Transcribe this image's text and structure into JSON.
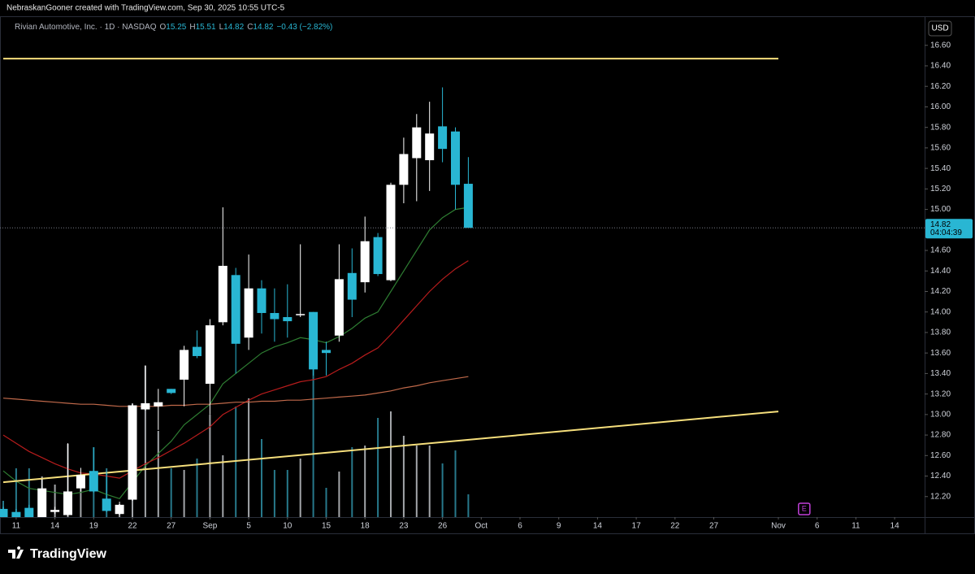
{
  "header": {
    "credit": "NebraskanGooner created with TradingView.com, Sep 30, 2025 10:55 UTC-5"
  },
  "chart_data": {
    "type": "candlestick",
    "symbol": "Rivian Automotive, Inc. · 1D · NASDAQ",
    "ohlc_letters": [
      "O",
      "H",
      "L",
      "C"
    ],
    "change_label": "−0.43 (−2.82%)",
    "currency": "USD",
    "countdown": "04:04:39",
    "categories": [
      null,
      "11",
      null,
      null,
      "14",
      null,
      null,
      "19",
      null,
      null,
      "22",
      null,
      null,
      "27",
      null,
      null,
      "Sep",
      null,
      null,
      "5",
      null,
      null,
      "10",
      null,
      null,
      "15",
      null,
      null,
      "18",
      null,
      null,
      "23",
      null,
      null,
      "26",
      null,
      null,
      "Oct",
      null,
      null,
      "6",
      null,
      null,
      "9",
      null,
      null,
      "14",
      null,
      null,
      "17",
      null,
      null,
      "22",
      null,
      null,
      "27",
      null,
      null,
      null,
      null,
      "Nov",
      null,
      null,
      "6",
      null,
      null,
      "11",
      null,
      null,
      "14",
      null,
      null
    ],
    "open": [
      12.08,
      12.05,
      12.09,
      12.0,
      12.05,
      12.02,
      12.28,
      12.45,
      12.18,
      12.03,
      12.17,
      13.05,
      13.08,
      13.25,
      13.34,
      13.66,
      13.3,
      13.9,
      14.36,
      13.75,
      14.23,
      13.99,
      13.95,
      13.97,
      14.0,
      13.63,
      13.77,
      14.38,
      14.29,
      14.73,
      14.31,
      15.24,
      15.5,
      15.48,
      15.81,
      15.76,
      15.25,
      null,
      null,
      null,
      null,
      null,
      null,
      null,
      null,
      null,
      null,
      null,
      null,
      null,
      null,
      null,
      null,
      null,
      null,
      null,
      null,
      null,
      null,
      null,
      null,
      null,
      null,
      null,
      null,
      null,
      null,
      null,
      null,
      null,
      null,
      null
    ],
    "high": [
      12.1,
      12.08,
      12.12,
      12.37,
      12.1,
      12.72,
      12.48,
      12.68,
      12.44,
      12.15,
      13.1,
      13.48,
      13.25,
      13.25,
      13.67,
      13.82,
      13.93,
      15.02,
      14.43,
      14.56,
      14.31,
      14.23,
      14.27,
      14.66,
      14.0,
      13.71,
      14.66,
      14.62,
      14.93,
      14.77,
      15.26,
      15.7,
      15.93,
      16.05,
      16.19,
      15.8,
      15.51,
      null,
      null,
      null,
      null,
      null,
      null,
      null,
      null,
      null,
      null,
      null,
      null,
      null,
      null,
      null,
      null,
      null,
      null,
      null,
      null,
      null,
      null,
      null,
      null,
      null,
      null,
      null,
      null,
      null,
      null,
      null,
      null,
      null,
      null,
      null
    ],
    "low": [
      12.0,
      11.96,
      12.0,
      11.99,
      12.03,
      12.01,
      12.25,
      12.24,
      12.05,
      12.02,
      12.16,
      13.04,
      12.85,
      13.2,
      13.08,
      13.55,
      13.0,
      13.87,
      13.4,
      13.63,
      13.79,
      13.71,
      13.75,
      13.95,
      13.38,
      13.38,
      13.71,
      13.95,
      14.19,
      14.35,
      14.3,
      15.06,
      15.08,
      15.18,
      15.46,
      15.0,
      14.82,
      null,
      null,
      null,
      null,
      null,
      null,
      null,
      null,
      null,
      null,
      null,
      null,
      null,
      null,
      null,
      null,
      null,
      null,
      null,
      null,
      null,
      null,
      null,
      null,
      null,
      null,
      null,
      null,
      null,
      null,
      null,
      null,
      null,
      null,
      null
    ],
    "close": [
      12.0,
      11.98,
      12.0,
      12.28,
      12.07,
      12.25,
      12.41,
      12.25,
      12.06,
      12.12,
      13.09,
      13.11,
      13.12,
      13.21,
      13.63,
      13.57,
      13.87,
      14.45,
      13.69,
      14.23,
      13.99,
      13.93,
      13.91,
      13.98,
      13.44,
      13.6,
      14.32,
      14.12,
      14.69,
      14.37,
      15.24,
      15.54,
      15.8,
      15.74,
      15.59,
      15.24,
      14.82,
      null,
      null,
      null,
      null,
      null,
      null,
      null,
      null,
      null,
      null,
      null,
      null,
      null,
      null,
      null,
      null,
      null,
      null,
      null,
      null,
      null,
      null,
      null,
      null,
      null,
      null,
      null,
      null,
      null,
      null,
      null,
      null,
      null,
      null,
      null
    ],
    "volume": [
      10,
      30,
      30,
      25,
      20,
      45,
      23,
      43,
      30,
      8,
      70,
      93,
      53,
      30,
      29,
      36,
      63,
      38,
      68,
      73,
      48,
      29,
      29,
      36,
      91,
      18,
      28,
      43,
      44,
      61,
      65,
      50,
      44,
      44,
      33,
      41,
      14,
      null,
      null,
      null,
      null,
      null,
      null,
      null,
      null,
      null,
      null,
      null,
      null,
      null,
      null,
      null,
      null,
      null,
      null,
      null,
      null,
      null,
      null,
      null,
      null,
      null,
      null,
      null,
      null,
      null,
      null,
      null,
      null,
      null,
      null,
      null
    ],
    "up_color": "#ffffff",
    "down_color": "#29b6d3",
    "series": [
      {
        "color": "#2e7d32",
        "values": [
          12.45,
          12.35,
          12.28,
          12.26,
          12.24,
          12.22,
          12.24,
          12.27,
          12.22,
          12.18,
          12.34,
          12.5,
          12.62,
          12.74,
          12.9,
          13.0,
          13.1,
          13.3,
          13.4,
          13.5,
          13.6,
          13.66,
          13.7,
          13.75,
          13.73,
          13.7,
          13.76,
          13.84,
          13.94,
          14.0,
          14.2,
          14.4,
          14.6,
          14.8,
          14.92,
          15.0,
          15.02,
          null,
          null,
          null,
          null,
          null,
          null,
          null,
          null,
          null,
          null,
          null,
          null,
          null,
          null,
          null,
          null,
          null,
          null,
          null,
          null,
          null,
          null,
          null,
          null,
          null,
          null,
          null,
          null,
          null,
          null,
          null,
          null,
          null,
          null,
          null
        ]
      },
      {
        "color": "#b71c1c",
        "values": [
          12.8,
          12.72,
          12.64,
          12.58,
          12.52,
          12.47,
          12.43,
          12.42,
          12.4,
          12.38,
          12.45,
          12.52,
          12.58,
          12.65,
          12.72,
          12.8,
          12.88,
          13.0,
          13.07,
          13.14,
          13.2,
          13.24,
          13.28,
          13.32,
          13.34,
          13.37,
          13.44,
          13.5,
          13.58,
          13.65,
          13.78,
          13.92,
          14.06,
          14.2,
          14.32,
          14.42,
          14.5,
          null,
          null,
          null,
          null,
          null,
          null,
          null,
          null,
          null,
          null,
          null,
          null,
          null,
          null,
          null,
          null,
          null,
          null,
          null,
          null,
          null,
          null,
          null,
          null,
          null,
          null,
          null,
          null,
          null,
          null,
          null,
          null,
          null,
          null,
          null
        ]
      },
      {
        "color": "#c0694a",
        "values": [
          13.16,
          13.15,
          13.14,
          13.13,
          13.12,
          13.11,
          13.1,
          13.1,
          13.09,
          13.08,
          13.08,
          13.08,
          13.08,
          13.09,
          13.09,
          13.1,
          13.1,
          13.11,
          13.12,
          13.12,
          13.13,
          13.13,
          13.14,
          13.14,
          13.15,
          13.16,
          13.17,
          13.18,
          13.19,
          13.21,
          13.23,
          13.26,
          13.28,
          13.31,
          13.33,
          13.35,
          13.37,
          null,
          null,
          null,
          null,
          null,
          null,
          null,
          null,
          null,
          null,
          null,
          null,
          null,
          null,
          null,
          null,
          null,
          null,
          null,
          null,
          null,
          null,
          null,
          null,
          null,
          null,
          null,
          null,
          null,
          null,
          null,
          null,
          null,
          null,
          null
        ]
      }
    ],
    "hlines": [
      {
        "value": 16.47,
        "start": 0,
        "end": 60,
        "color": "#f6df7c"
      }
    ],
    "trendlines": [
      {
        "start": 0,
        "end": 60,
        "values": [
          12.34,
          13.03
        ],
        "color": "#f6df7c"
      }
    ],
    "earnings": {
      "label": "E",
      "category": 62,
      "color": "#c03fd8"
    },
    "ylim": [
      12.0,
      16.82
    ],
    "yticks": [
      {
        "value": 12.2,
        "label": "12.20"
      },
      {
        "value": 12.4,
        "label": "12.40"
      },
      {
        "value": 12.6,
        "label": "12.60"
      },
      {
        "value": 12.8,
        "label": "12.80"
      },
      {
        "value": 13.0,
        "label": "13.00"
      },
      {
        "value": 13.2,
        "label": "13.20"
      },
      {
        "value": 13.4,
        "label": "13.40"
      },
      {
        "value": 13.6,
        "label": "13.60"
      },
      {
        "value": 13.8,
        "label": "13.80"
      },
      {
        "value": 14.0,
        "label": "14.00"
      },
      {
        "value": 14.2,
        "label": "14.20"
      },
      {
        "value": 14.4,
        "label": "14.40"
      },
      {
        "value": 14.6,
        "label": "14.60"
      },
      {
        "value": 15.0,
        "label": "15.00"
      },
      {
        "value": 15.2,
        "label": "15.20"
      },
      {
        "value": 15.4,
        "label": "15.40"
      },
      {
        "value": 15.6,
        "label": "15.60"
      },
      {
        "value": 15.8,
        "label": "15.80"
      },
      {
        "value": 16.0,
        "label": "16.00"
      },
      {
        "value": 16.2,
        "label": "16.20"
      },
      {
        "value": 16.4,
        "label": "16.40"
      },
      {
        "value": 16.6,
        "label": "16.60"
      }
    ]
  },
  "footer": {
    "logo": "TradingView"
  }
}
